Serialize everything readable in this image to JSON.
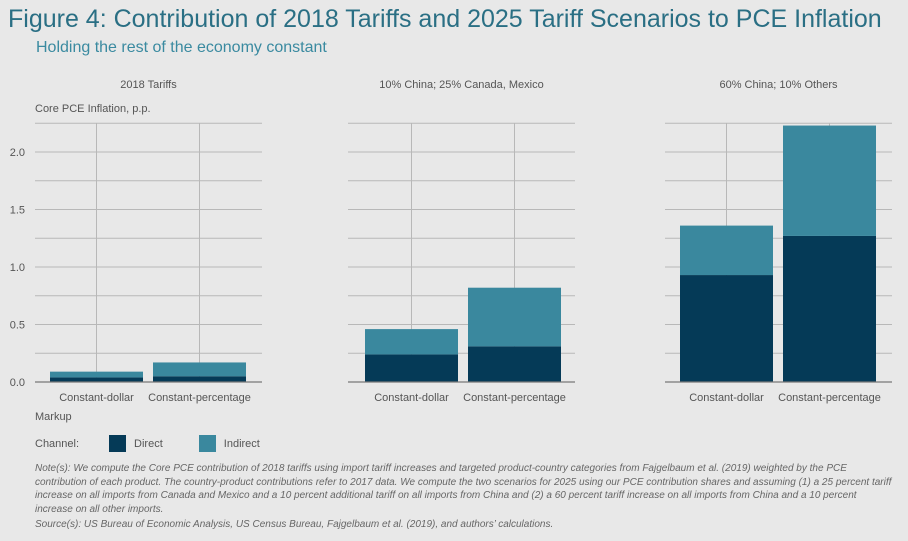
{
  "title": "Figure 4: Contribution of 2018 Tariffs and 2025 Tariff Scenarios to PCE Inflation",
  "subtitle": "Holding the rest of the economy constant",
  "colors": {
    "direct": "#053a57",
    "indirect": "#3a889e",
    "title": "#2a6f84"
  },
  "chart_data": {
    "type": "bar",
    "stacked": true,
    "ylabel": "Core PCE Inflation, p.p.",
    "xlabel": "Markup",
    "ylim": [
      0,
      2.25
    ],
    "yticks": [
      "0.0",
      "0.5",
      "1.0",
      "1.5",
      "2.0"
    ],
    "grid": true,
    "legend_title": "Channel:",
    "legend_placement": "bottom-left",
    "series_names": [
      "Direct",
      "Indirect"
    ],
    "panels": [
      {
        "title": "2018 Tariffs",
        "categories": [
          "Constant-dollar",
          "Constant-percentage"
        ],
        "series": [
          {
            "name": "Direct",
            "values": [
              0.04,
              0.05
            ]
          },
          {
            "name": "Indirect",
            "values": [
              0.05,
              0.12
            ]
          }
        ]
      },
      {
        "title": "10% China; 25% Canada, Mexico",
        "categories": [
          "Constant-dollar",
          "Constant-percentage"
        ],
        "series": [
          {
            "name": "Direct",
            "values": [
              0.24,
              0.31
            ]
          },
          {
            "name": "Indirect",
            "values": [
              0.22,
              0.51
            ]
          }
        ]
      },
      {
        "title": "60% China; 10% Others",
        "categories": [
          "Constant-dollar",
          "Constant-percentage"
        ],
        "series": [
          {
            "name": "Direct",
            "values": [
              0.93,
              1.27
            ]
          },
          {
            "name": "Indirect",
            "values": [
              0.43,
              0.96
            ]
          }
        ]
      }
    ]
  },
  "note": "Note(s): We compute the Core PCE contribution of 2018 tariffs using import tariff increases and targeted product-country categories from Fajgelbaum et al. (2019) weighted by the PCE contribution of each product. The country-product contributions refer to 2017 data. We compute the two scenarios for 2025 using our PCE contribution shares and assuming (1) a 25 percent tariff increase on all imports from Canada and Mexico and a 10 percent additional tariff on all imports from China and (2) a 60 percent tariff increase on all imports from China and a 10 percent increase on all other imports.",
  "source": "Source(s): US Bureau of Economic Analysis, US Census Bureau, Fajgelbaum et al. (2019), and authors’ calculations."
}
